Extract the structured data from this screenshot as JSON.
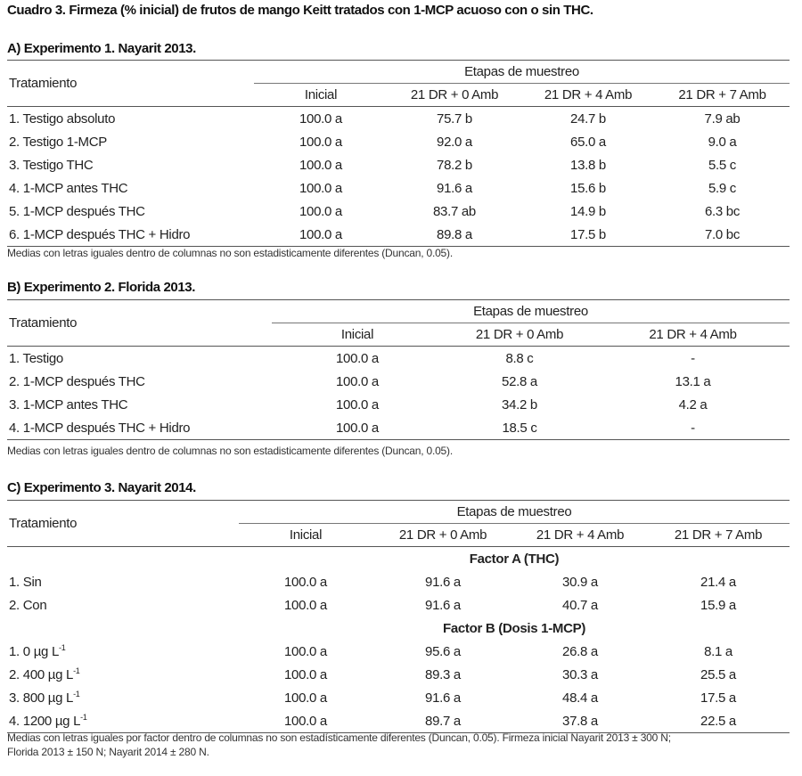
{
  "title": "Cuadro 3. Firmeza (% inicial) de frutos de mango Keitt tratados con 1-MCP acuoso con o sin THC.",
  "tables": [
    {
      "heading": "A) Experimento 1. Nayarit 2013.",
      "row_header": "Tratamiento",
      "group_header": "Etapas de muestreo",
      "columns": [
        "Inicial",
        "21 DR + 0 Amb",
        "21 DR + 4 Amb",
        "21 DR + 7 Amb"
      ],
      "rows": [
        [
          "1. Testigo absoluto",
          "100.0 a",
          "75.7 b",
          "24.7 b",
          "7.9 ab"
        ],
        [
          "2. Testigo 1-MCP",
          "100.0 a",
          "92.0 a",
          "65.0 a",
          "9.0 a"
        ],
        [
          "3. Testigo THC",
          "100.0 a",
          "78.2 b",
          "13.8 b",
          "5.5 c"
        ],
        [
          "4. 1-MCP antes THC",
          "100.0 a",
          "91.6 a",
          "15.6 b",
          "5.9 c"
        ],
        [
          "5. 1-MCP después THC",
          "100.0 a",
          "83.7 ab",
          "14.9 b",
          "6.3 bc"
        ],
        [
          "6. 1-MCP después THC + Hidro",
          "100.0 a",
          "89.8 a",
          "17.5 b",
          "7.0 bc"
        ]
      ],
      "note": "Medias con letras iguales dentro de columnas no son estadisticamente diferentes (Duncan, 0.05)."
    },
    {
      "heading": "B) Experimento 2. Florida 2013.",
      "row_header": "Tratamiento",
      "group_header": "Etapas de muestreo",
      "columns": [
        "Inicial",
        "21 DR + 0 Amb",
        "21 DR + 4 Amb"
      ],
      "rows": [
        [
          "1. Testigo",
          "100.0 a",
          "8.8 c",
          "-"
        ],
        [
          "2. 1-MCP después THC",
          "100.0 a",
          "52.8 a",
          "13.1 a"
        ],
        [
          "3. 1-MCP antes THC",
          "100.0 a",
          "34.2 b",
          "4.2 a"
        ],
        [
          "4. 1-MCP después THC + Hidro",
          "100.0 a",
          "18.5 c",
          "-"
        ]
      ],
      "note": "Medias con letras iguales dentro de columnas no son estadisticamente diferentes (Duncan, 0.05)."
    },
    {
      "heading": "C) Experimento 3. Nayarit 2014.",
      "row_header": "Tratamiento",
      "group_header": "Etapas de muestreo",
      "columns": [
        "Inicial",
        "21 DR + 0 Amb",
        "21 DR + 4 Amb",
        "21 DR + 7 Amb"
      ],
      "factor_a": {
        "label": "Factor A (THC)",
        "rows": [
          [
            "1. Sin",
            "100.0 a",
            "91.6 a",
            "30.9 a",
            "21.4 a"
          ],
          [
            "2. Con",
            "100.0 a",
            "91.6 a",
            "40.7 a",
            "15.9 a"
          ]
        ]
      },
      "factor_b": {
        "label": "Factor B (Dosis 1-MCP)",
        "unit": "µg L",
        "unit_exp": "-1",
        "rows": [
          [
            "1. 0",
            "100.0 a",
            "95.6 a",
            "26.8 a",
            "8.1 a"
          ],
          [
            "2. 400",
            "100.0 a",
            "89.3 a",
            "30.3 a",
            "25.5 a"
          ],
          [
            "3. 800",
            "100.0 a",
            "91.6 a",
            "48.4 a",
            "17.5 a"
          ],
          [
            "4. 1200",
            "100.0 a",
            "89.7 a",
            "37.8 a",
            "22.5 a"
          ]
        ]
      },
      "note_line1": "Medias con letras iguales por factor dentro de columnas no son estadísticamente diferentes (Duncan, 0.05). Firmeza inicial Nayarit 2013 ± 300 N;",
      "note_line2": "Florida 2013 ± 150 N; Nayarit 2014 ± 280 N."
    }
  ]
}
